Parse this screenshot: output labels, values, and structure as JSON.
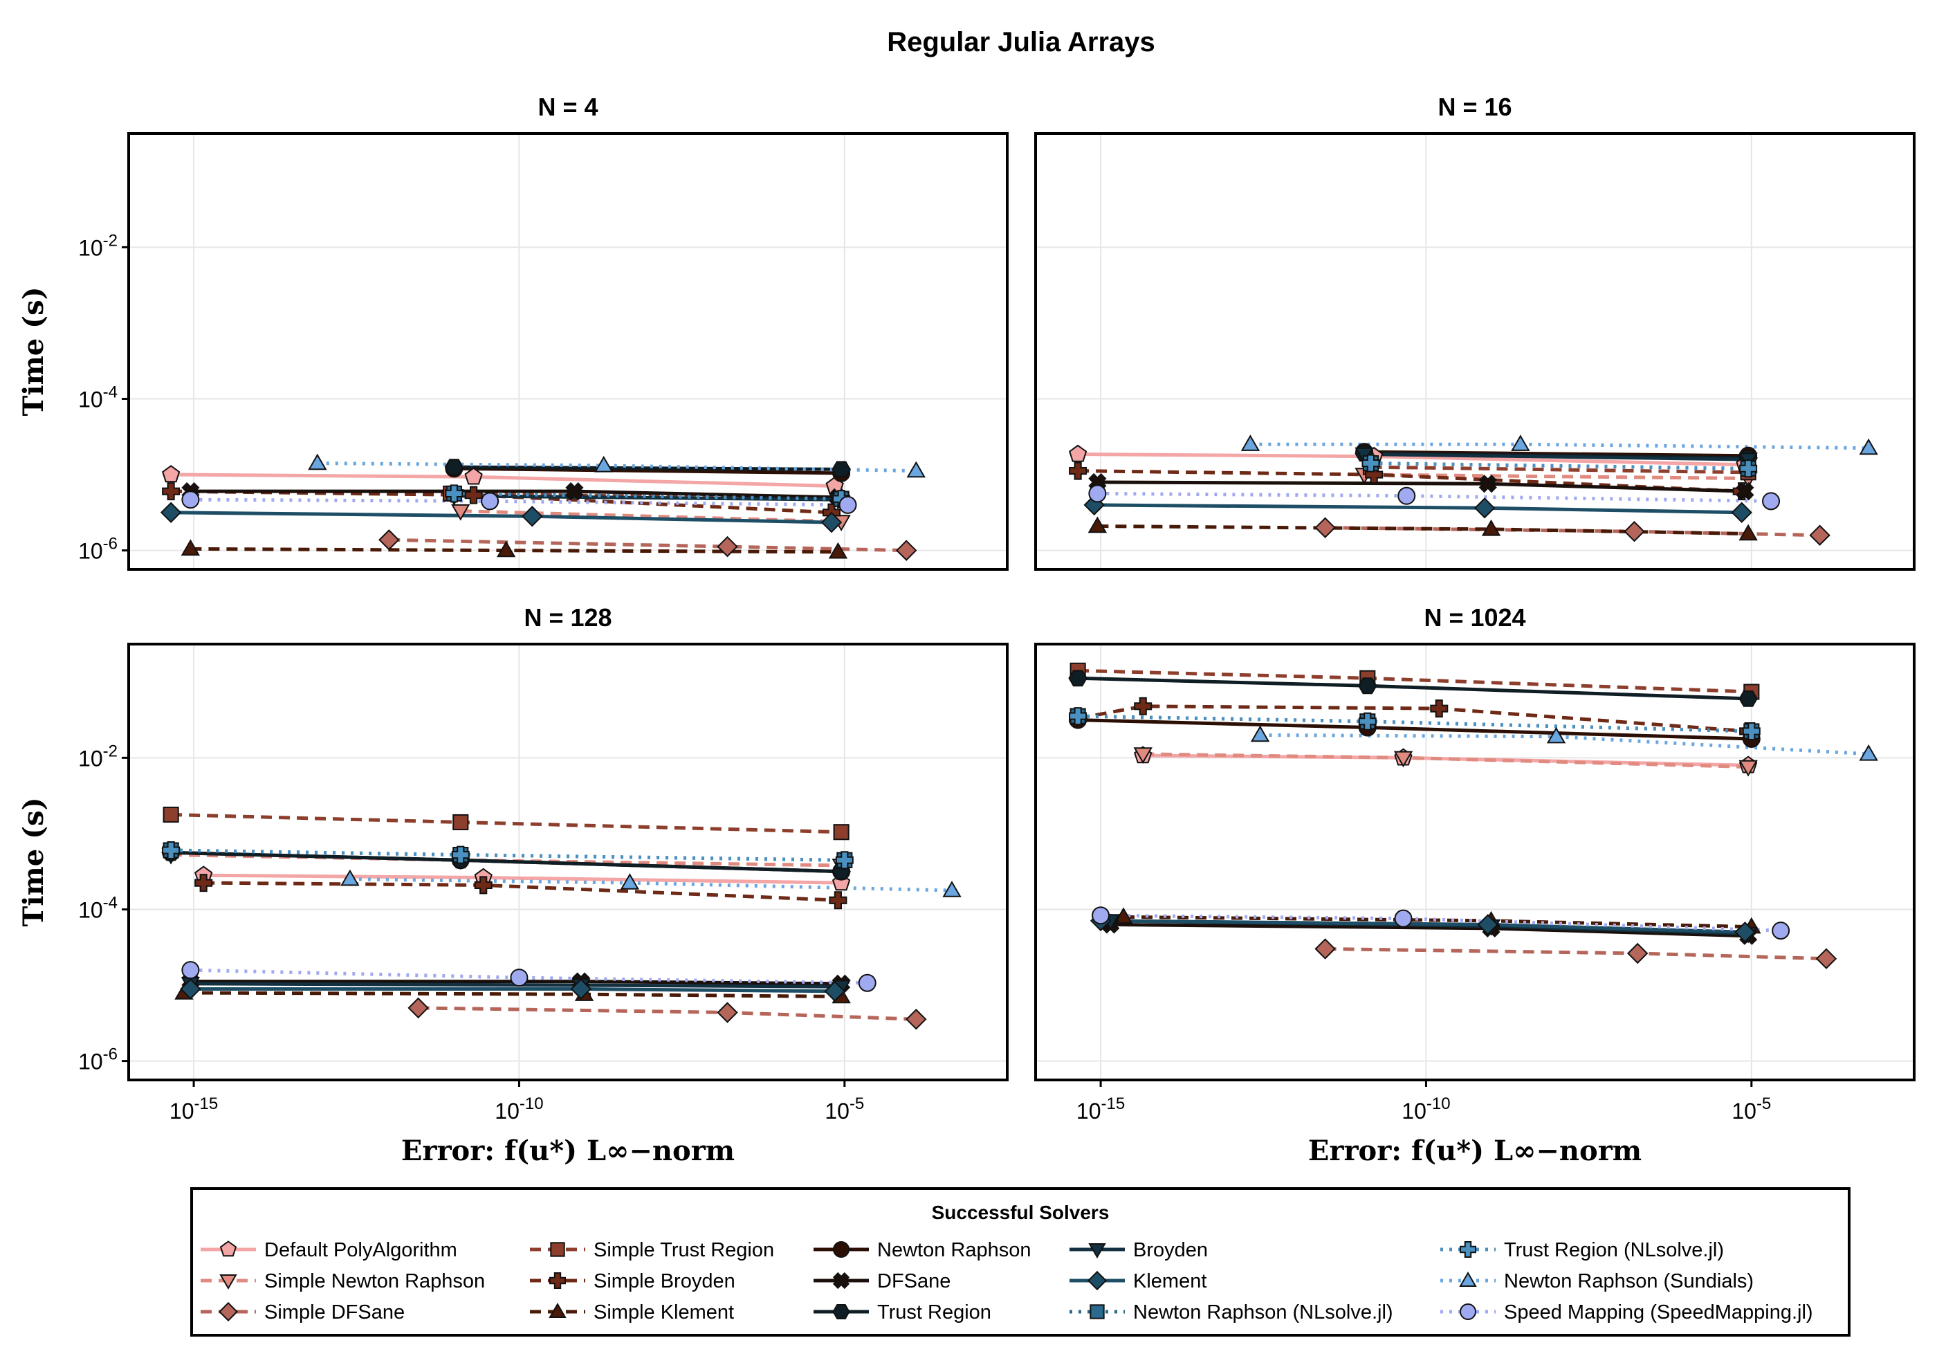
{
  "title": "Regular Julia Arrays",
  "xlabel": "Error: f(u*) L∞−norm",
  "ylabel": "Time (s)",
  "legend": {
    "title": "Successful Solvers",
    "entries": [
      "Default PolyAlgorithm",
      "Simple Newton Raphson",
      "Simple DFSane",
      "Simple Trust Region",
      "Simple Broyden",
      "Simple Klement",
      "Newton Raphson",
      "DFSane",
      "Trust Region",
      "Broyden",
      "Klement",
      "Newton Raphson (NLsolve.jl)",
      "Trust Region (NLsolve.jl)",
      "Newton Raphson (Sundials)",
      "Speed Mapping (SpeedMapping.jl)"
    ]
  },
  "chart_data": {
    "type": "line",
    "xscale": "log10",
    "yscale": "log10",
    "xlim_exp": [
      -16,
      -2.5
    ],
    "ylim_exp": [
      -6.25,
      -0.5
    ],
    "x_ticks": [
      "10^-15",
      "10^-10",
      "10^-5"
    ],
    "y_ticks": [
      "10^-6",
      "10^-4",
      "10^-2"
    ],
    "grid": true,
    "legend_position": "bottom",
    "series_styles": [
      {
        "name": "Default PolyAlgorithm",
        "color": "#f4a6a6",
        "dash": "solid",
        "marker": "pentagon"
      },
      {
        "name": "Simple Newton Raphson",
        "color": "#e08a80",
        "dash": "dashed",
        "marker": "triangle-down"
      },
      {
        "name": "Simple DFSane",
        "color": "#b5655a",
        "dash": "dashed",
        "marker": "diamond"
      },
      {
        "name": "Simple Trust Region",
        "color": "#8e3e2c",
        "dash": "dashed",
        "marker": "square"
      },
      {
        "name": "Simple Broyden",
        "color": "#6e2a16",
        "dash": "dashed",
        "marker": "cross"
      },
      {
        "name": "Simple Klement",
        "color": "#4a1a08",
        "dash": "dashed",
        "marker": "triangle-up"
      },
      {
        "name": "Newton Raphson",
        "color": "#2c0f04",
        "dash": "solid",
        "marker": "circle"
      },
      {
        "name": "DFSane",
        "color": "#1a0f0a",
        "dash": "solid",
        "marker": "x"
      },
      {
        "name": "Trust Region",
        "color": "#0f1d24",
        "dash": "solid",
        "marker": "hexagon"
      },
      {
        "name": "Broyden",
        "color": "#123040",
        "dash": "solid",
        "marker": "triangle-down"
      },
      {
        "name": "Klement",
        "color": "#1e4e66",
        "dash": "solid",
        "marker": "diamond"
      },
      {
        "name": "Newton Raphson (NLsolve.jl)",
        "color": "#2a6a8e",
        "dash": "dotted",
        "marker": "square"
      },
      {
        "name": "Trust Region (NLsolve.jl)",
        "color": "#4a90c0",
        "dash": "dotted",
        "marker": "cross"
      },
      {
        "name": "Newton Raphson (Sundials)",
        "color": "#6aa6e0",
        "dash": "dotted",
        "marker": "triangle-up"
      },
      {
        "name": "Speed Mapping (SpeedMapping.jl)",
        "color": "#a0aaf0",
        "dash": "dotted",
        "marker": "circle"
      }
    ],
    "panels": [
      {
        "title": "N = 4",
        "series": [
          {
            "name": "Default PolyAlgorithm",
            "x_exp": [
              -15.35,
              -10.7,
              -5.15
            ],
            "y_exp": [
              -5.0,
              -5.03,
              -5.15
            ]
          },
          {
            "name": "Simple Newton Raphson",
            "x_exp": [
              -10.9,
              -5.05
            ],
            "y_exp": [
              -5.48,
              -5.62
            ]
          },
          {
            "name": "Simple DFSane",
            "x_exp": [
              -12.0,
              -6.8,
              -4.05
            ],
            "y_exp": [
              -5.86,
              -5.95,
              -6.0
            ]
          },
          {
            "name": "Simple Trust Region",
            "x_exp": [
              -11.05,
              -5.05
            ],
            "y_exp": [
              -5.25,
              -5.32
            ]
          },
          {
            "name": "Simple Broyden",
            "x_exp": [
              -15.35,
              -10.7,
              -5.2
            ],
            "y_exp": [
              -5.22,
              -5.27,
              -5.5
            ]
          },
          {
            "name": "Simple Klement",
            "x_exp": [
              -15.05,
              -10.2,
              -5.1
            ],
            "y_exp": [
              -5.98,
              -6.0,
              -6.02
            ]
          },
          {
            "name": "Newton Raphson",
            "x_exp": [
              -11.0,
              -5.05
            ],
            "y_exp": [
              -4.92,
              -4.98
            ]
          },
          {
            "name": "DFSane",
            "x_exp": [
              -15.05,
              -9.15,
              -5.1
            ],
            "y_exp": [
              -5.22,
              -5.22,
              -5.3
            ]
          },
          {
            "name": "Trust Region",
            "x_exp": [
              -11.0,
              -5.05
            ],
            "y_exp": [
              -4.9,
              -4.93
            ]
          },
          {
            "name": "Broyden",
            "x_exp": [
              -11.0,
              -5.1
            ],
            "y_exp": [
              -5.28,
              -5.33
            ]
          },
          {
            "name": "Klement",
            "x_exp": [
              -15.35,
              -9.8,
              -5.2
            ],
            "y_exp": [
              -5.5,
              -5.55,
              -5.63
            ]
          },
          {
            "name": "Newton Raphson (NLsolve.jl)",
            "x_exp": [
              -11.0,
              -5.05
            ],
            "y_exp": [
              -5.25,
              -5.32
            ]
          },
          {
            "name": "Trust Region (NLsolve.jl)",
            "x_exp": [
              -11.0,
              -5.05
            ],
            "y_exp": [
              -5.25,
              -5.32
            ]
          },
          {
            "name": "Newton Raphson (Sundials)",
            "x_exp": [
              -13.1,
              -8.7,
              -3.9
            ],
            "y_exp": [
              -4.85,
              -4.88,
              -4.95
            ]
          },
          {
            "name": "Speed Mapping (SpeedMapping.jl)",
            "x_exp": [
              -15.05,
              -10.45,
              -4.95
            ],
            "y_exp": [
              -5.33,
              -5.35,
              -5.4
            ]
          }
        ]
      },
      {
        "title": "N = 16",
        "series": [
          {
            "name": "Default PolyAlgorithm",
            "x_exp": [
              -15.35,
              -10.8,
              -5.1
            ],
            "y_exp": [
              -4.73,
              -4.76,
              -4.87
            ]
          },
          {
            "name": "Simple Newton Raphson",
            "x_exp": [
              -10.95,
              -5.05
            ],
            "y_exp": [
              -5.0,
              -5.05
            ]
          },
          {
            "name": "Simple DFSane",
            "x_exp": [
              -11.55,
              -6.8,
              -3.95
            ],
            "y_exp": [
              -5.7,
              -5.75,
              -5.8
            ]
          },
          {
            "name": "Simple Trust Region",
            "x_exp": [
              -10.85,
              -5.05
            ],
            "y_exp": [
              -4.9,
              -4.97
            ]
          },
          {
            "name": "Simple Broyden",
            "x_exp": [
              -15.35,
              -10.8,
              -5.15
            ],
            "y_exp": [
              -4.95,
              -5.0,
              -5.22
            ]
          },
          {
            "name": "Simple Klement",
            "x_exp": [
              -15.05,
              -9.0,
              -5.05
            ],
            "y_exp": [
              -5.68,
              -5.72,
              -5.78
            ]
          },
          {
            "name": "Newton Raphson",
            "x_exp": [
              -10.95,
              -5.05
            ],
            "y_exp": [
              -4.7,
              -4.75
            ]
          },
          {
            "name": "DFSane",
            "x_exp": [
              -15.05,
              -9.05,
              -5.1
            ],
            "y_exp": [
              -5.1,
              -5.12,
              -5.22
            ]
          },
          {
            "name": "Trust Region",
            "x_exp": [
              -10.95,
              -5.05
            ],
            "y_exp": [
              -4.72,
              -4.78
            ]
          },
          {
            "name": "Broyden",
            "x_exp": [
              -10.95,
              -5.05
            ],
            "y_exp": [
              -4.73,
              -4.8
            ]
          },
          {
            "name": "Klement",
            "x_exp": [
              -15.1,
              -9.1,
              -5.15
            ],
            "y_exp": [
              -5.4,
              -5.44,
              -5.5
            ]
          },
          {
            "name": "Newton Raphson (NLsolve.jl)",
            "x_exp": [
              -10.85,
              -5.05
            ],
            "y_exp": [
              -4.85,
              -4.92
            ]
          },
          {
            "name": "Trust Region (NLsolve.jl)",
            "x_exp": [
              -10.85,
              -5.05
            ],
            "y_exp": [
              -4.85,
              -4.92
            ]
          },
          {
            "name": "Newton Raphson (Sundials)",
            "x_exp": [
              -12.7,
              -8.55,
              -3.2
            ],
            "y_exp": [
              -4.6,
              -4.6,
              -4.65
            ]
          },
          {
            "name": "Speed Mapping (SpeedMapping.jl)",
            "x_exp": [
              -15.05,
              -10.3,
              -4.7
            ],
            "y_exp": [
              -5.25,
              -5.28,
              -5.35
            ]
          }
        ]
      },
      {
        "title": "N = 128",
        "series": [
          {
            "name": "Default PolyAlgorithm",
            "x_exp": [
              -14.85,
              -10.55,
              -5.05
            ],
            "y_exp": [
              -3.55,
              -3.58,
              -3.65
            ]
          },
          {
            "name": "Simple Newton Raphson",
            "x_exp": [
              -15.35,
              -10.9,
              -5.05
            ],
            "y_exp": [
              -3.28,
              -3.35,
              -3.42
            ]
          },
          {
            "name": "Simple DFSane",
            "x_exp": [
              -11.55,
              -6.8,
              -3.9
            ],
            "y_exp": [
              -5.3,
              -5.36,
              -5.45
            ]
          },
          {
            "name": "Simple Trust Region",
            "x_exp": [
              -15.35,
              -10.9,
              -5.05
            ],
            "y_exp": [
              -2.75,
              -2.85,
              -2.98
            ]
          },
          {
            "name": "Simple Broyden",
            "x_exp": [
              -14.85,
              -10.55,
              -5.1
            ],
            "y_exp": [
              -3.65,
              -3.68,
              -3.88
            ]
          },
          {
            "name": "Simple Klement",
            "x_exp": [
              -15.15,
              -9.0,
              -5.05
            ],
            "y_exp": [
              -5.1,
              -5.12,
              -5.15
            ]
          },
          {
            "name": "Newton Raphson",
            "x_exp": [
              -15.35,
              -10.9,
              -5.05
            ],
            "y_exp": [
              -3.25,
              -3.35,
              -3.5
            ]
          },
          {
            "name": "DFSane",
            "x_exp": [
              -15.05,
              -9.05,
              -5.05
            ],
            "y_exp": [
              -4.95,
              -4.95,
              -4.98
            ]
          },
          {
            "name": "Trust Region",
            "x_exp": [
              -15.35,
              -10.9,
              -5.05
            ],
            "y_exp": [
              -3.25,
              -3.35,
              -3.5
            ]
          },
          {
            "name": "Broyden",
            "x_exp": [
              -15.05,
              -9.05,
              -5.05
            ],
            "y_exp": [
              -4.98,
              -5.0,
              -5.02
            ]
          },
          {
            "name": "Klement",
            "x_exp": [
              -15.05,
              -9.05,
              -5.15
            ],
            "y_exp": [
              -5.05,
              -5.05,
              -5.08
            ]
          },
          {
            "name": "Newton Raphson (NLsolve.jl)",
            "x_exp": [
              -15.35,
              -10.9,
              -5.0
            ],
            "y_exp": [
              -3.22,
              -3.28,
              -3.35
            ]
          },
          {
            "name": "Trust Region (NLsolve.jl)",
            "x_exp": [
              -15.35,
              -10.9,
              -5.0
            ],
            "y_exp": [
              -3.22,
              -3.28,
              -3.35
            ]
          },
          {
            "name": "Newton Raphson (Sundials)",
            "x_exp": [
              -12.6,
              -8.3,
              -3.35
            ],
            "y_exp": [
              -3.6,
              -3.65,
              -3.75
            ]
          },
          {
            "name": "Speed Mapping (SpeedMapping.jl)",
            "x_exp": [
              -15.05,
              -10.0,
              -4.65
            ],
            "y_exp": [
              -4.8,
              -4.9,
              -4.97
            ]
          }
        ]
      },
      {
        "title": "N = 1024",
        "series": [
          {
            "name": "Default PolyAlgorithm",
            "x_exp": [
              -14.35,
              -10.35,
              -5.05
            ],
            "y_exp": [
              -1.97,
              -2.0,
              -2.1
            ]
          },
          {
            "name": "Simple Newton Raphson",
            "x_exp": [
              -14.35,
              -10.35,
              -5.05
            ],
            "y_exp": [
              -1.95,
              -2.0,
              -2.12
            ]
          },
          {
            "name": "Simple DFSane",
            "x_exp": [
              -11.55,
              -6.75,
              -3.85
            ],
            "y_exp": [
              -4.52,
              -4.58,
              -4.65
            ]
          },
          {
            "name": "Simple Trust Region",
            "x_exp": [
              -15.35,
              -10.9,
              -5.0
            ],
            "y_exp": [
              -0.85,
              -0.95,
              -1.13
            ]
          },
          {
            "name": "Simple Broyden",
            "x_exp": [
              -15.35,
              -14.35,
              -9.8,
              -5.05
            ],
            "y_exp": [
              -1.48,
              -1.32,
              -1.35,
              -1.65
            ]
          },
          {
            "name": "Simple Klement",
            "x_exp": [
              -14.65,
              -9.0,
              -5.0
            ],
            "y_exp": [
              -4.1,
              -4.15,
              -4.23
            ]
          },
          {
            "name": "Newton Raphson",
            "x_exp": [
              -15.35,
              -10.9,
              -5.0
            ],
            "y_exp": [
              -1.5,
              -1.6,
              -1.75
            ]
          },
          {
            "name": "DFSane",
            "x_exp": [
              -14.85,
              -9.0,
              -5.05
            ],
            "y_exp": [
              -4.2,
              -4.25,
              -4.35
            ]
          },
          {
            "name": "Trust Region",
            "x_exp": [
              -15.35,
              -10.9,
              -5.05
            ],
            "y_exp": [
              -0.95,
              -1.05,
              -1.22
            ]
          },
          {
            "name": "Broyden",
            "x_exp": [
              -14.85,
              -9.0,
              -5.05
            ],
            "y_exp": [
              -4.15,
              -4.22,
              -4.32
            ]
          },
          {
            "name": "Klement",
            "x_exp": [
              -15.0,
              -9.05,
              -5.1
            ],
            "y_exp": [
              -4.15,
              -4.2,
              -4.3
            ]
          },
          {
            "name": "Newton Raphson (NLsolve.jl)",
            "x_exp": [
              -15.35,
              -10.9,
              -5.0
            ],
            "y_exp": [
              -1.45,
              -1.52,
              -1.65
            ]
          },
          {
            "name": "Trust Region (NLsolve.jl)",
            "x_exp": [
              -15.35,
              -10.9,
              -5.0
            ],
            "y_exp": [
              -1.45,
              -1.52,
              -1.65
            ]
          },
          {
            "name": "Newton Raphson (Sundials)",
            "x_exp": [
              -12.55,
              -8.0,
              -3.2
            ],
            "y_exp": [
              -1.7,
              -1.72,
              -1.95
            ]
          },
          {
            "name": "Speed Mapping (SpeedMapping.jl)",
            "x_exp": [
              -15.0,
              -10.35,
              -4.55
            ],
            "y_exp": [
              -4.08,
              -4.12,
              -4.28
            ]
          }
        ]
      }
    ]
  }
}
